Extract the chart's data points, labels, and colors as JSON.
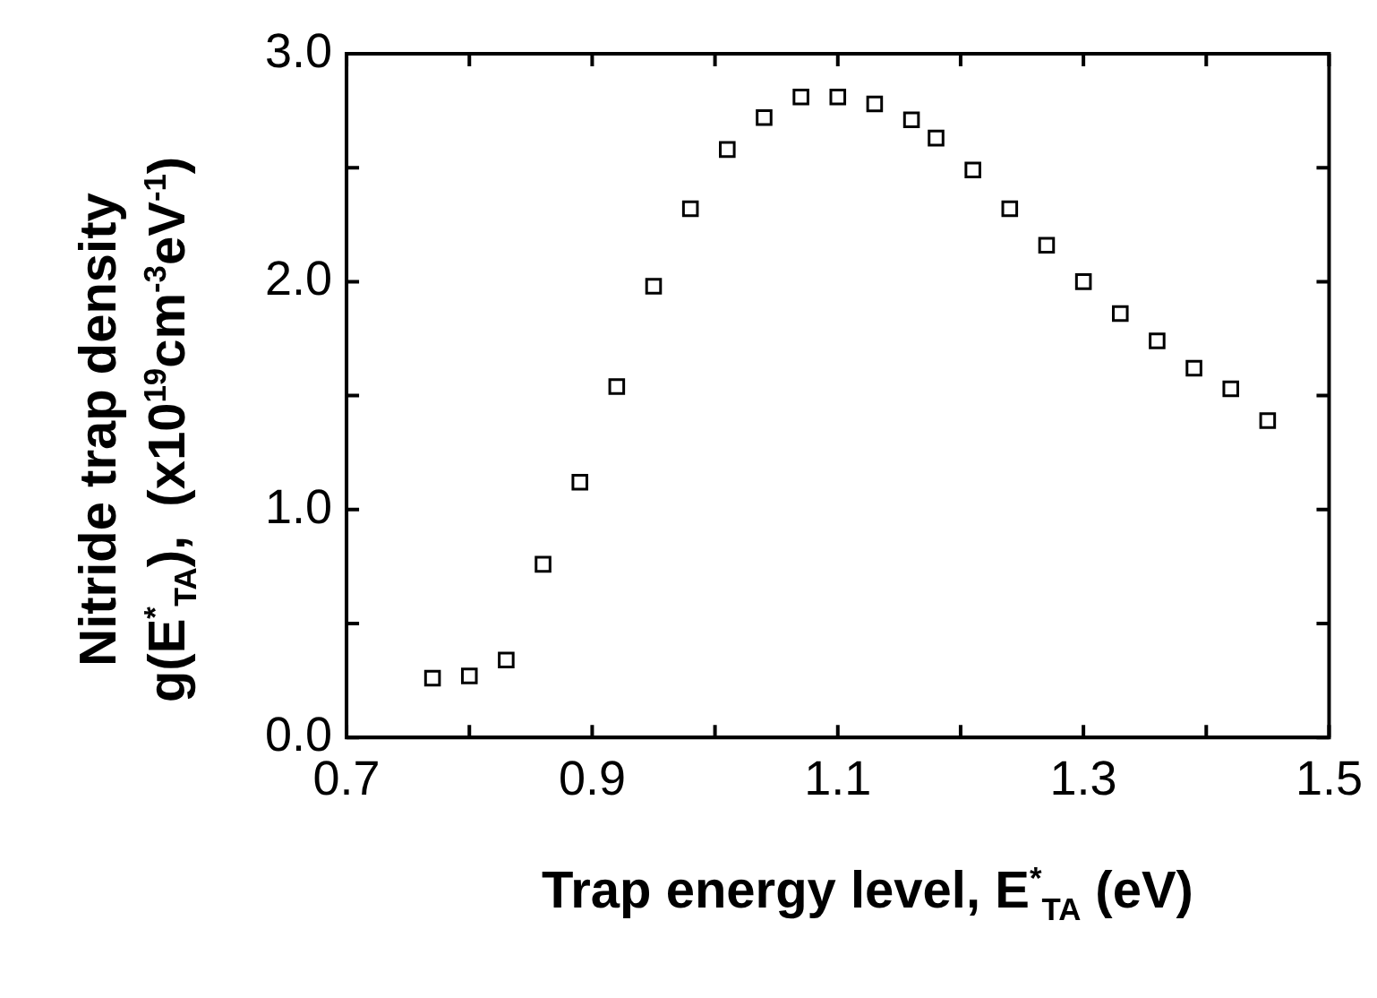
{
  "chart_data": {
    "type": "scatter",
    "xlabel": "Trap energy level, E$^{*}$$_{TA}$ (eV)",
    "ylabel": "Nitride trap density\ng(E$^{*}$$_{TA}$),  (x10$^{19}$cm$^{-3}$eV$^{-1}$)",
    "x": [
      0.77,
      0.8,
      0.83,
      0.86,
      0.89,
      0.92,
      0.95,
      0.98,
      1.01,
      1.04,
      1.07,
      1.1,
      1.13,
      1.16,
      1.18,
      1.21,
      1.24,
      1.27,
      1.3,
      1.33,
      1.36,
      1.39,
      1.42,
      1.45
    ],
    "series": [
      {
        "color": "#000000",
        "values": [
          0.26,
          0.27,
          0.34,
          0.76,
          1.12,
          1.54,
          1.98,
          2.32,
          2.58,
          2.72,
          2.81,
          2.81,
          2.78,
          2.71,
          2.63,
          2.49,
          2.32,
          2.16,
          2.0,
          1.86,
          1.74,
          1.62,
          1.53,
          1.39
        ]
      }
    ],
    "marker": "square",
    "xlim": [
      0.7,
      1.5
    ],
    "ylim": [
      0,
      3
    ],
    "xticks": [
      {
        "value": 0.7,
        "label": "0.7"
      },
      {
        "value": 0.8,
        "label": null
      },
      {
        "value": 0.9,
        "label": "0.9"
      },
      {
        "value": 1.0,
        "label": null
      },
      {
        "value": 1.1,
        "label": "1.1"
      },
      {
        "value": 1.2,
        "label": null
      },
      {
        "value": 1.3,
        "label": "1.3"
      },
      {
        "value": 1.4,
        "label": null
      },
      {
        "value": 1.5,
        "label": "1.5"
      }
    ],
    "yticks": [
      {
        "value": 0,
        "label": "0.0"
      },
      {
        "value": 0.5,
        "label": null
      },
      {
        "value": 1,
        "label": "1.0"
      },
      {
        "value": 1.5,
        "label": null
      },
      {
        "value": 2,
        "label": "2.0"
      },
      {
        "value": 2.5,
        "label": null
      },
      {
        "value": 3,
        "label": "3.0"
      }
    ]
  }
}
